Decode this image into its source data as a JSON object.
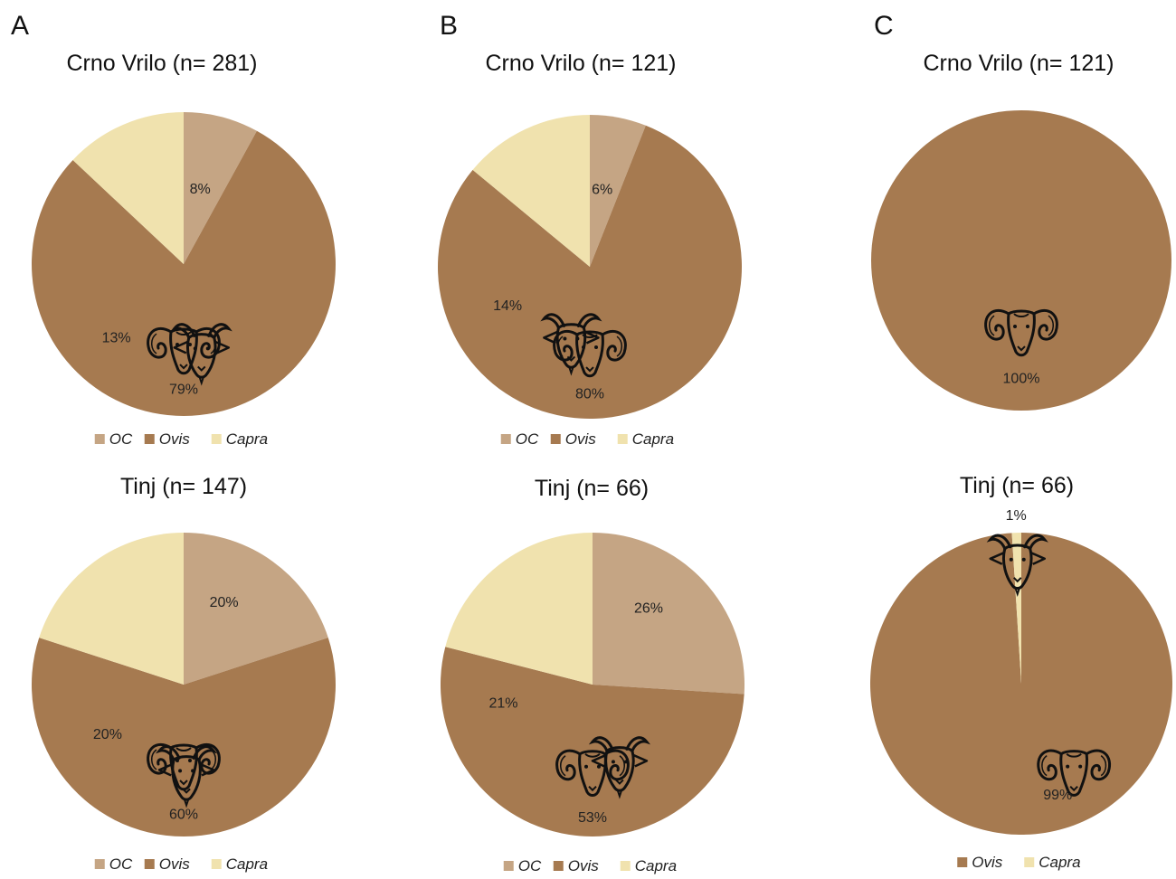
{
  "colors": {
    "OC": "#c5a584",
    "Ovis": "#a67a50",
    "Capra": "#f0e2ae"
  },
  "panels": [
    {
      "letter": "A",
      "charts": [
        {
          "title": "Crno Vrilo (n= 281)",
          "slices": [
            {
              "name": "OC",
              "value": 8,
              "label": "8%"
            },
            {
              "name": "Ovis",
              "value": 79,
              "label": "79%"
            },
            {
              "name": "Capra",
              "value": 13,
              "label": "13%"
            }
          ],
          "legend": [
            "OC",
            "Ovis",
            "Capra"
          ]
        },
        {
          "title": "Tinj (n= 147)",
          "slices": [
            {
              "name": "OC",
              "value": 20,
              "label": "20%"
            },
            {
              "name": "Ovis",
              "value": 60,
              "label": "60%"
            },
            {
              "name": "Capra",
              "value": 20,
              "label": "20%"
            }
          ],
          "legend": [
            "OC",
            "Ovis",
            "Capra"
          ]
        }
      ]
    },
    {
      "letter": "B",
      "charts": [
        {
          "title": "Crno Vrilo (n= 121)",
          "slices": [
            {
              "name": "OC",
              "value": 6,
              "label": "6%"
            },
            {
              "name": "Ovis",
              "value": 80,
              "label": "80%"
            },
            {
              "name": "Capra",
              "value": 14,
              "label": "14%"
            }
          ],
          "legend": [
            "OC",
            "Ovis",
            "Capra"
          ]
        },
        {
          "title": "Tinj (n= 66)",
          "slices": [
            {
              "name": "OC",
              "value": 26,
              "label": "26%"
            },
            {
              "name": "Ovis",
              "value": 53,
              "label": "53%"
            },
            {
              "name": "Capra",
              "value": 21,
              "label": "21%"
            }
          ],
          "legend": [
            "OC",
            "Ovis",
            "Capra"
          ]
        }
      ]
    },
    {
      "letter": "C",
      "charts": [
        {
          "title": "Crno Vrilo (n= 121)",
          "slices": [
            {
              "name": "Ovis",
              "value": 100,
              "label": "100%"
            }
          ],
          "legend": []
        },
        {
          "title": "Tinj (n= 66)",
          "slices": [
            {
              "name": "Ovis",
              "value": 99,
              "label": "99%"
            },
            {
              "name": "Capra",
              "value": 1,
              "label": "1%"
            }
          ],
          "legend": [
            "Ovis",
            "Capra"
          ]
        }
      ]
    }
  ],
  "chart_data": [
    {
      "type": "pie",
      "title": "Crno Vrilo (n= 281)",
      "panel": "A",
      "categories": [
        "OC",
        "Ovis",
        "Capra"
      ],
      "values": [
        8,
        79,
        13
      ]
    },
    {
      "type": "pie",
      "title": "Tinj (n= 147)",
      "panel": "A",
      "categories": [
        "OC",
        "Ovis",
        "Capra"
      ],
      "values": [
        20,
        60,
        20
      ]
    },
    {
      "type": "pie",
      "title": "Crno Vrilo (n= 121)",
      "panel": "B",
      "categories": [
        "OC",
        "Ovis",
        "Capra"
      ],
      "values": [
        6,
        80,
        14
      ]
    },
    {
      "type": "pie",
      "title": "Tinj (n= 66)",
      "panel": "B",
      "categories": [
        "OC",
        "Ovis",
        "Capra"
      ],
      "values": [
        26,
        53,
        21
      ]
    },
    {
      "type": "pie",
      "title": "Crno Vrilo (n= 121)",
      "panel": "C",
      "categories": [
        "Ovis"
      ],
      "values": [
        100
      ]
    },
    {
      "type": "pie",
      "title": "Tinj (n= 66)",
      "panel": "C",
      "categories": [
        "Ovis",
        "Capra"
      ],
      "values": [
        99,
        1
      ]
    }
  ]
}
